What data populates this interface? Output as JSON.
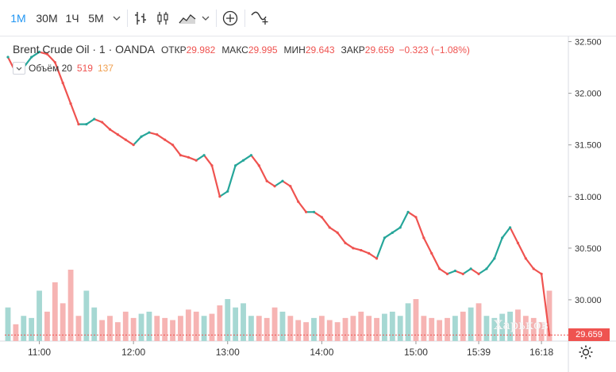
{
  "toolbar": {
    "intervals": [
      "1М",
      "30М",
      "1Ч",
      "5М"
    ],
    "active_interval": "1М"
  },
  "legend": {
    "symbol": "Brent Crude Oil · 1 · OANDA",
    "open_label": "ОТКР",
    "open": "29.982",
    "high_label": "МАКС",
    "high": "29.995",
    "low_label": "МИН",
    "low": "29.643",
    "close_label": "ЗАКР",
    "close": "29.659",
    "change": "−0.323 (−1.08%)"
  },
  "volume_legend": {
    "name": "Объём 20",
    "value1": "519",
    "value2": "137"
  },
  "price_tag": "29.659",
  "watermark": "Харьков",
  "colors": {
    "up": "#26a69a",
    "down": "#ef5350",
    "accent": "#2196f3",
    "vol_up": "#a6d8d3",
    "vol_down": "#f6b4b3"
  },
  "chart_data": {
    "type": "line",
    "title": "Brent Crude Oil · 1 · OANDA",
    "xlabel": "",
    "ylabel": "",
    "x_ticks": [
      "11:00",
      "12:00",
      "13:00",
      "14:00",
      "15:00",
      "15:39",
      "16:18"
    ],
    "y_ticks": [
      "32.500",
      "32.000",
      "31.500",
      "31.000",
      "30.500",
      "30.000"
    ],
    "ylim": [
      29.6,
      32.55
    ],
    "series": [
      {
        "name": "Brent Crude Oil close",
        "x": [
          "10:40",
          "10:45",
          "10:50",
          "10:55",
          "11:00",
          "11:05",
          "11:10",
          "11:15",
          "11:20",
          "11:25",
          "11:30",
          "11:35",
          "11:40",
          "11:45",
          "11:50",
          "11:55",
          "12:00",
          "12:05",
          "12:10",
          "12:15",
          "12:20",
          "12:25",
          "12:30",
          "12:35",
          "12:40",
          "12:45",
          "12:50",
          "12:55",
          "13:00",
          "13:05",
          "13:10",
          "13:15",
          "13:20",
          "13:25",
          "13:30",
          "13:35",
          "13:40",
          "13:45",
          "13:50",
          "13:55",
          "14:00",
          "14:05",
          "14:10",
          "14:15",
          "14:20",
          "14:25",
          "14:30",
          "14:35",
          "14:40",
          "14:45",
          "14:50",
          "14:55",
          "15:00",
          "15:05",
          "15:10",
          "15:15",
          "15:20",
          "15:25",
          "15:30",
          "15:35",
          "15:39",
          "15:45",
          "15:50",
          "15:55",
          "16:00",
          "16:05",
          "16:10",
          "16:15",
          "16:18",
          "16:20"
        ],
        "values": [
          32.35,
          32.2,
          32.25,
          32.35,
          32.4,
          32.38,
          32.3,
          32.1,
          31.9,
          31.7,
          31.7,
          31.75,
          31.72,
          31.65,
          31.6,
          31.55,
          31.5,
          31.58,
          31.62,
          31.6,
          31.55,
          31.5,
          31.4,
          31.38,
          31.35,
          31.4,
          31.3,
          31.0,
          31.05,
          31.3,
          31.35,
          31.4,
          31.3,
          31.15,
          31.1,
          31.15,
          31.1,
          30.95,
          30.85,
          30.85,
          30.8,
          30.7,
          30.65,
          30.55,
          30.5,
          30.48,
          30.45,
          30.4,
          30.6,
          30.65,
          30.7,
          30.85,
          30.8,
          30.6,
          30.45,
          30.3,
          30.25,
          30.28,
          30.25,
          30.3,
          30.25,
          30.3,
          30.4,
          30.6,
          30.7,
          30.55,
          30.4,
          30.3,
          30.25,
          29.659
        ]
      }
    ],
    "volume": [
      80,
      40,
      60,
      55,
      120,
      70,
      140,
      90,
      170,
      60,
      120,
      80,
      50,
      60,
      45,
      70,
      55,
      65,
      70,
      60,
      55,
      50,
      60,
      75,
      70,
      60,
      65,
      85,
      100,
      80,
      90,
      60,
      60,
      55,
      80,
      70,
      60,
      50,
      45,
      55,
      60,
      50,
      45,
      55,
      60,
      70,
      60,
      55,
      65,
      70,
      60,
      90,
      100,
      60,
      55,
      50,
      55,
      60,
      70,
      80,
      90,
      60,
      55,
      65,
      70,
      75,
      60,
      55,
      45,
      120
    ]
  }
}
